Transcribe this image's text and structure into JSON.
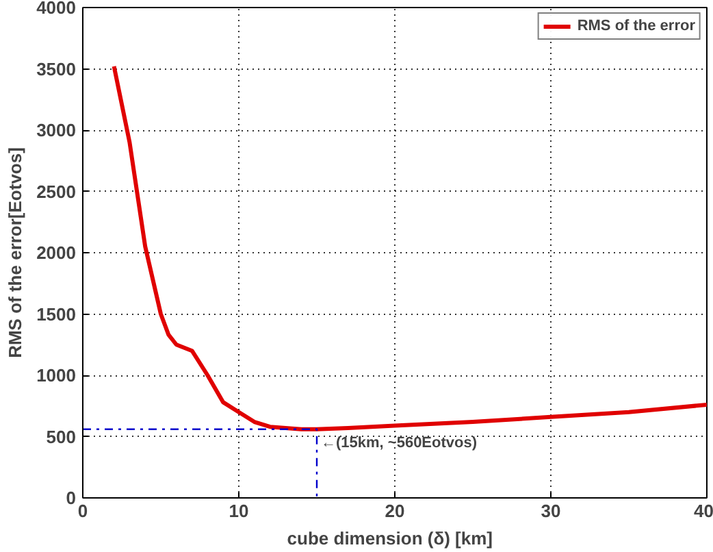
{
  "chart_data": {
    "type": "line",
    "xlabel": "cube dimension (δ)   [km]",
    "ylabel": "RMS of the error[Eotvos]",
    "xlim": [
      0,
      40
    ],
    "xticks": [
      0,
      10,
      20,
      30,
      40
    ],
    "ylim": [
      0,
      4000
    ],
    "yticks": [
      0,
      500,
      1000,
      1500,
      2000,
      2500,
      3000,
      3500,
      4000
    ],
    "grid": true,
    "legend": "top right",
    "series": [
      {
        "name": "RMS of the error",
        "color": "#e00000",
        "line_style": "solid",
        "x": [
          2,
          3,
          4,
          5,
          5.5,
          6,
          7,
          8,
          9,
          10,
          11,
          12,
          13,
          14,
          15,
          17,
          20,
          25,
          30,
          35,
          40
        ],
        "values": [
          3520,
          2900,
          2050,
          1500,
          1330,
          1250,
          1200,
          1000,
          780,
          700,
          620,
          580,
          570,
          560,
          560,
          570,
          590,
          620,
          660,
          700,
          760
        ]
      },
      {
        "color": "#0000cc",
        "line_style": "dashed",
        "x": [
          0,
          15,
          15
        ],
        "values": [
          560,
          560,
          0
        ]
      }
    ],
    "annotations": [
      {
        "text": "←(15km, ~560Eotvos)",
        "x": 15,
        "y": 560
      }
    ]
  }
}
